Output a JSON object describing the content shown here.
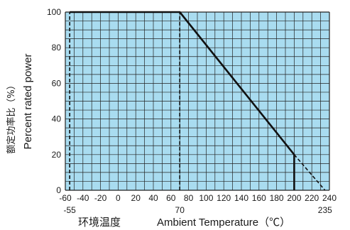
{
  "chart_data": {
    "type": "line",
    "xlabel_cn": "环境温度",
    "xlabel": "Ambient Temperature（℃）",
    "ylabel_cn": "额定功率比（%）",
    "ylabel": "Percent rated power",
    "xlim": [
      -60,
      240
    ],
    "ylim": [
      0,
      100
    ],
    "x_ticks": [
      "-60",
      "-40",
      "-20",
      "0",
      "20",
      "40",
      "60",
      "80",
      "100",
      "120",
      "140",
      "160",
      "180",
      "200",
      "220",
      "240"
    ],
    "y_ticks": [
      "0",
      "20",
      "40",
      "60",
      "80",
      "100"
    ],
    "x_special_ticks": [
      "-55",
      "70",
      "235"
    ],
    "grid": true,
    "background": "#a9dcf0",
    "series": [
      {
        "style": "solid",
        "color": "#111111",
        "x": [
          -55,
          70,
          200,
          200
        ],
        "y": [
          100,
          100,
          20,
          0
        ]
      },
      {
        "style": "dashed",
        "color": "#111111",
        "x": [
          200,
          235
        ],
        "y": [
          20,
          0
        ]
      },
      {
        "style": "dashed",
        "color": "#111111",
        "x": [
          70,
          70
        ],
        "y": [
          0,
          100
        ]
      },
      {
        "style": "dashed",
        "color": "#111111",
        "x": [
          -55,
          -55
        ],
        "y": [
          0,
          100
        ]
      }
    ]
  }
}
